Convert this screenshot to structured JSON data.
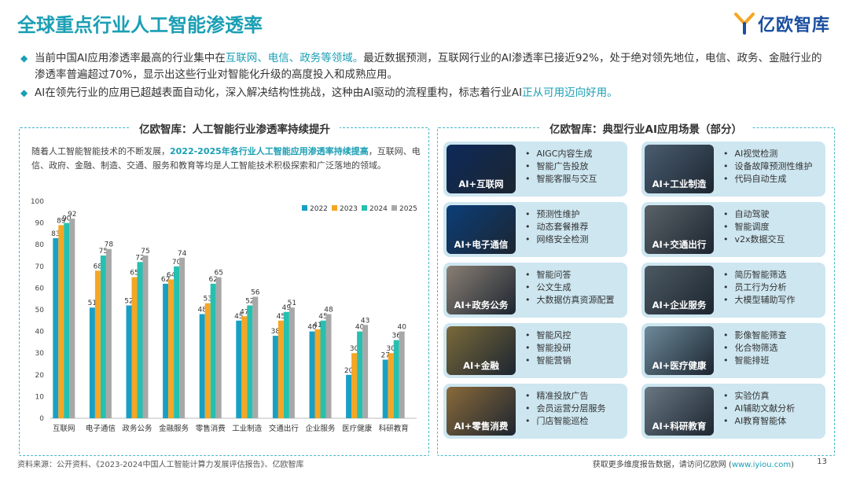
{
  "title": "全球重点行业人工智能渗透率",
  "logo_text": "亿欧智库",
  "bullets": [
    {
      "pre": "当前中国AI应用渗透率最高的行业集中在",
      "hl": "互联网、电信、政务等领域。",
      "post": "最近数据预测，互联网行业的AI渗透率已接近92%，处于绝对领先地位，电信、政务、金融行业的渗透率普遍超过70%，显示出这些行业对智能化升级的高度投入和成熟应用。"
    },
    {
      "pre": "AI在领先行业的应用已超越表面自动化，深入解决结构性挑战，这种由AI驱动的流程重构，标志着行业AI",
      "hl": "正从可用迈向好用。",
      "post": ""
    }
  ],
  "left_panel": {
    "title": "亿欧智库：人工智能行业渗透率持续提升",
    "desc_pre": "随着人工智能智能技术的不断发展，",
    "desc_hl": "2022-2025年各行业人工智能应用渗透率持续提高",
    "desc_post": "，互联网、电信、政府、金融、制造、交通、服务和教育等均是人工智能技术积极探索和广泛落地的领域。"
  },
  "chart_data": {
    "type": "bar",
    "categories": [
      "互联网",
      "电子通信",
      "政务公务",
      "金融服务",
      "零售消费",
      "工业制造",
      "交通出行",
      "企业服务",
      "医疗健康",
      "科研教育"
    ],
    "series": [
      {
        "name": "2022",
        "color": "#1a9fc4",
        "values": [
          83,
          51,
          52,
          62,
          48,
          45,
          38,
          40,
          20,
          27
        ]
      },
      {
        "name": "2023",
        "color": "#f5a623",
        "values": [
          89,
          68,
          65,
          64,
          53,
          47,
          45,
          41,
          30,
          30
        ]
      },
      {
        "name": "2024",
        "color": "#26c0b0",
        "values": [
          90,
          75,
          72,
          70,
          62,
          52,
          49,
          45,
          40,
          36
        ]
      },
      {
        "name": "2025",
        "color": "#a8a8a8",
        "values": [
          92,
          78,
          75,
          74,
          65,
          56,
          51,
          48,
          43,
          40
        ]
      }
    ],
    "yticks": [
      "0",
      "10",
      "20",
      "30",
      "40",
      "50",
      "60",
      "70",
      "80",
      "90",
      "100"
    ],
    "ylim": [
      0,
      100
    ],
    "legend_position": "top-right",
    "grid": false
  },
  "right_panel": {
    "title": "亿欧智库：典型行业AI应用场景（部分）",
    "cards": [
      {
        "label": "AI+互联网",
        "items": [
          "AIGC内容生成",
          "智能广告投放",
          "智能客服与交互"
        ],
        "tone": "#0d2a5a"
      },
      {
        "label": "AI+工业制造",
        "items": [
          "AI视觉检测",
          "设备故障预测性维护",
          "代码自动生成"
        ],
        "tone": "#4a5d70"
      },
      {
        "label": "AI+电子通信",
        "items": [
          "预测性维护",
          "动态套餐推荐",
          "网络安全检测"
        ],
        "tone": "#0b3e78"
      },
      {
        "label": "AI+交通出行",
        "items": [
          "自动驾驶",
          "智能调度",
          "v2x数据交互"
        ],
        "tone": "#5a6268"
      },
      {
        "label": "AI+政务公务",
        "items": [
          "智能问答",
          "公文生成",
          "大数据仿真资源配置"
        ],
        "tone": "#8a7f74"
      },
      {
        "label": "AI+企业服务",
        "items": [
          "简历智能筛选",
          "员工行为分析",
          "大模型辅助写作"
        ],
        "tone": "#4d5a62"
      },
      {
        "label": "AI+金融",
        "items": [
          "智能风控",
          "智能投研",
          "智能营销"
        ],
        "tone": "#7a6a3a"
      },
      {
        "label": "AI+医疗健康",
        "items": [
          "影像智能筛查",
          "化合物筛选",
          "智能排班"
        ],
        "tone": "#6d8a9a"
      },
      {
        "label": "AI+零售消费",
        "items": [
          "精准投放广告",
          "会员运营分层服务",
          "门店智能巡检"
        ],
        "tone": "#8a6a3a"
      },
      {
        "label": "AI+科研教育",
        "items": [
          "实验仿真",
          "AI辅助文献分析",
          "AI教育智能体"
        ],
        "tone": "#6a7884"
      }
    ]
  },
  "footer": {
    "source": "资料来源：公开资料、《2023-2024中国人工智能计算力发展评估报告》、亿欧智库",
    "more_pre": "获取更多维度报告数据，请访问亿欧网 (",
    "more_url": "www.iyiou.com",
    "more_post": ")",
    "page": "13"
  }
}
